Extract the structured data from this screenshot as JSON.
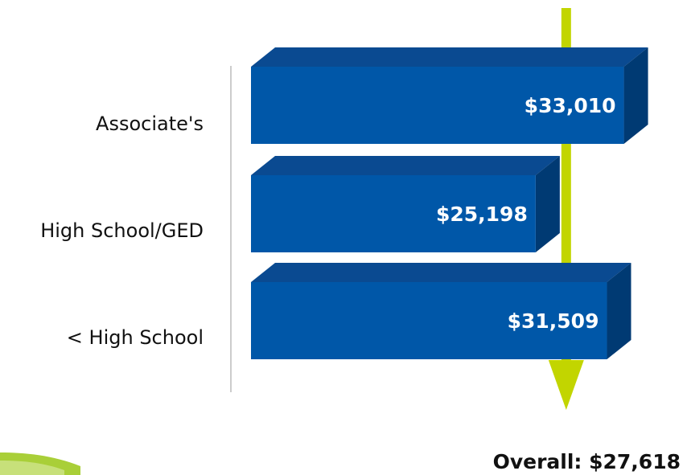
{
  "chart_data": {
    "type": "bar",
    "orientation": "horizontal",
    "style": "3d",
    "categories": [
      "Associate's",
      "High School/GED",
      "< High School"
    ],
    "values": [
      33010,
      25198,
      31509
    ],
    "value_labels": [
      "$33,010",
      "$25,198",
      "$31,509"
    ],
    "reference_line": {
      "value": 27618,
      "label": "Overall: $27,618"
    },
    "colors": {
      "bar_front": "#0057A8",
      "bar_top": "#0A4A91",
      "bar_side": "#003A73",
      "reference_line": "#C2D500",
      "axis": "#CCCCCC"
    }
  }
}
